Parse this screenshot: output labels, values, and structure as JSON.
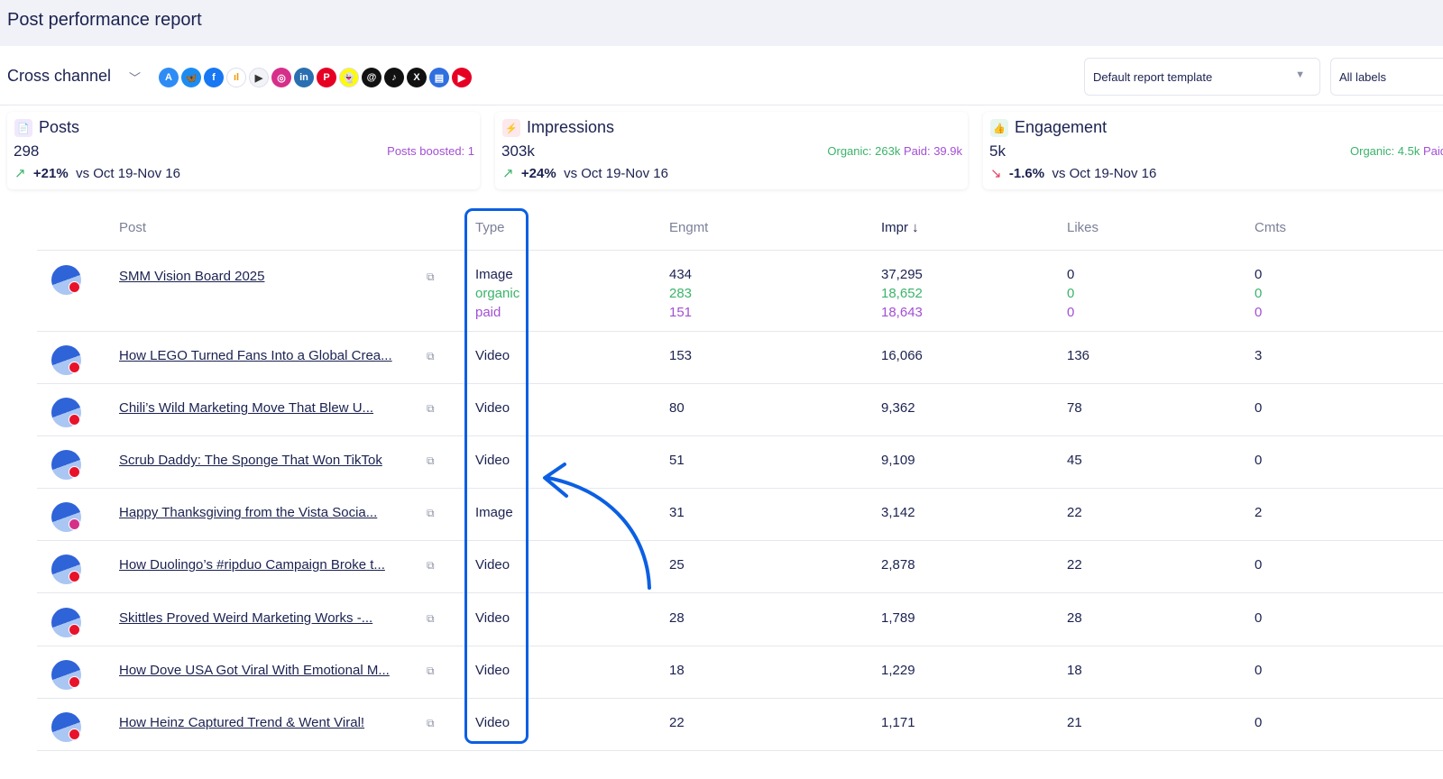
{
  "header": {
    "title": "Post performance report"
  },
  "toolbar": {
    "channel": "Cross channel",
    "networks": [
      {
        "name": "app-store",
        "color": "#2f8cf5",
        "g": "A"
      },
      {
        "name": "bluesky",
        "color": "#1d8cf2",
        "g": "🦋"
      },
      {
        "name": "facebook",
        "color": "#1877f2",
        "g": "f"
      },
      {
        "name": "google-analytics",
        "color": "#ffffff",
        "g": "ıl"
      },
      {
        "name": "google-play",
        "color": "#f2f3f6",
        "g": "▶"
      },
      {
        "name": "instagram",
        "color": "#d62f8a",
        "g": "◎"
      },
      {
        "name": "linkedin",
        "color": "#2a6fb0",
        "g": "in"
      },
      {
        "name": "pinterest",
        "color": "#e60023",
        "g": "P"
      },
      {
        "name": "snapchat",
        "color": "#fffc00",
        "g": "👻"
      },
      {
        "name": "threads",
        "color": "#111111",
        "g": "@"
      },
      {
        "name": "tiktok",
        "color": "#111111",
        "g": "♪"
      },
      {
        "name": "x",
        "color": "#111111",
        "g": "X"
      },
      {
        "name": "google-business",
        "color": "#2f6fe0",
        "g": "▤"
      },
      {
        "name": "youtube",
        "color": "#e60023",
        "g": "▶"
      }
    ],
    "template": "Default report template",
    "labels": "All labels"
  },
  "cards": [
    {
      "title": "Posts",
      "value": "298",
      "side1": "Posts boosted: 1",
      "side2": "",
      "change": "+21%",
      "vs": "vs Oct 19-Nov 16",
      "dir": "up"
    },
    {
      "title": "Impressions",
      "value": "303k",
      "side1": "Organic: 263k",
      "side2": "Paid: 39.9k",
      "change": "+24%",
      "vs": "vs Oct 19-Nov 16",
      "dir": "up"
    },
    {
      "title": "Engagement",
      "value": "5k",
      "side1": "Organic: 4.5k",
      "side2": "Paid",
      "change": "-1.6%",
      "vs": "vs Oct 19-Nov 16",
      "dir": "down"
    }
  ],
  "table": {
    "columns": [
      "Post",
      "Type",
      "Engmt",
      "Impr",
      "Likes",
      "Cmts"
    ],
    "sort_indicator": "↓",
    "first": {
      "title": "SMM Vision Board 2025",
      "network": "pinterest",
      "type": "Image",
      "engmt": "434",
      "impr": "37,295",
      "likes": "0",
      "cmts": "0",
      "organic": {
        "label": "organic",
        "engmt": "283",
        "impr": "18,652",
        "likes": "0",
        "cmts": "0"
      },
      "paid": {
        "label": "paid",
        "engmt": "151",
        "impr": "18,643",
        "likes": "0",
        "cmts": "0"
      }
    },
    "rows": [
      {
        "title": "How LEGO Turned Fans Into a Global Crea...",
        "network": "youtube",
        "type": "Video",
        "engmt": "153",
        "impr": "16,066",
        "likes": "136",
        "cmts": "3"
      },
      {
        "title": "Chili’s Wild Marketing Move That Blew U...",
        "network": "youtube",
        "type": "Video",
        "engmt": "80",
        "impr": "9,362",
        "likes": "78",
        "cmts": "0"
      },
      {
        "title": "Scrub Daddy: The Sponge That Won TikTok",
        "network": "youtube",
        "type": "Video",
        "engmt": "51",
        "impr": "9,109",
        "likes": "45",
        "cmts": "0"
      },
      {
        "title": "Happy Thanksgiving from the Vista Socia...",
        "network": "instagram",
        "type": "Image",
        "engmt": "31",
        "impr": "3,142",
        "likes": "22",
        "cmts": "2"
      },
      {
        "title": "How Duolingo’s #ripduo Campaign Broke t...",
        "network": "youtube",
        "type": "Video",
        "engmt": "25",
        "impr": "2,878",
        "likes": "22",
        "cmts": "0"
      },
      {
        "title": "Skittles Proved Weird Marketing Works -...",
        "network": "youtube",
        "type": "Video",
        "engmt": "28",
        "impr": "1,789",
        "likes": "28",
        "cmts": "0"
      },
      {
        "title": "How Dove USA Got Viral With Emotional M...",
        "network": "youtube",
        "type": "Video",
        "engmt": "18",
        "impr": "1,229",
        "likes": "18",
        "cmts": "0"
      },
      {
        "title": "How Heinz Captured Trend & Went Viral!",
        "network": "youtube",
        "type": "Video",
        "engmt": "22",
        "impr": "1,171",
        "likes": "21",
        "cmts": "0"
      }
    ]
  },
  "annotation": {
    "color": "#0b5fe3"
  }
}
